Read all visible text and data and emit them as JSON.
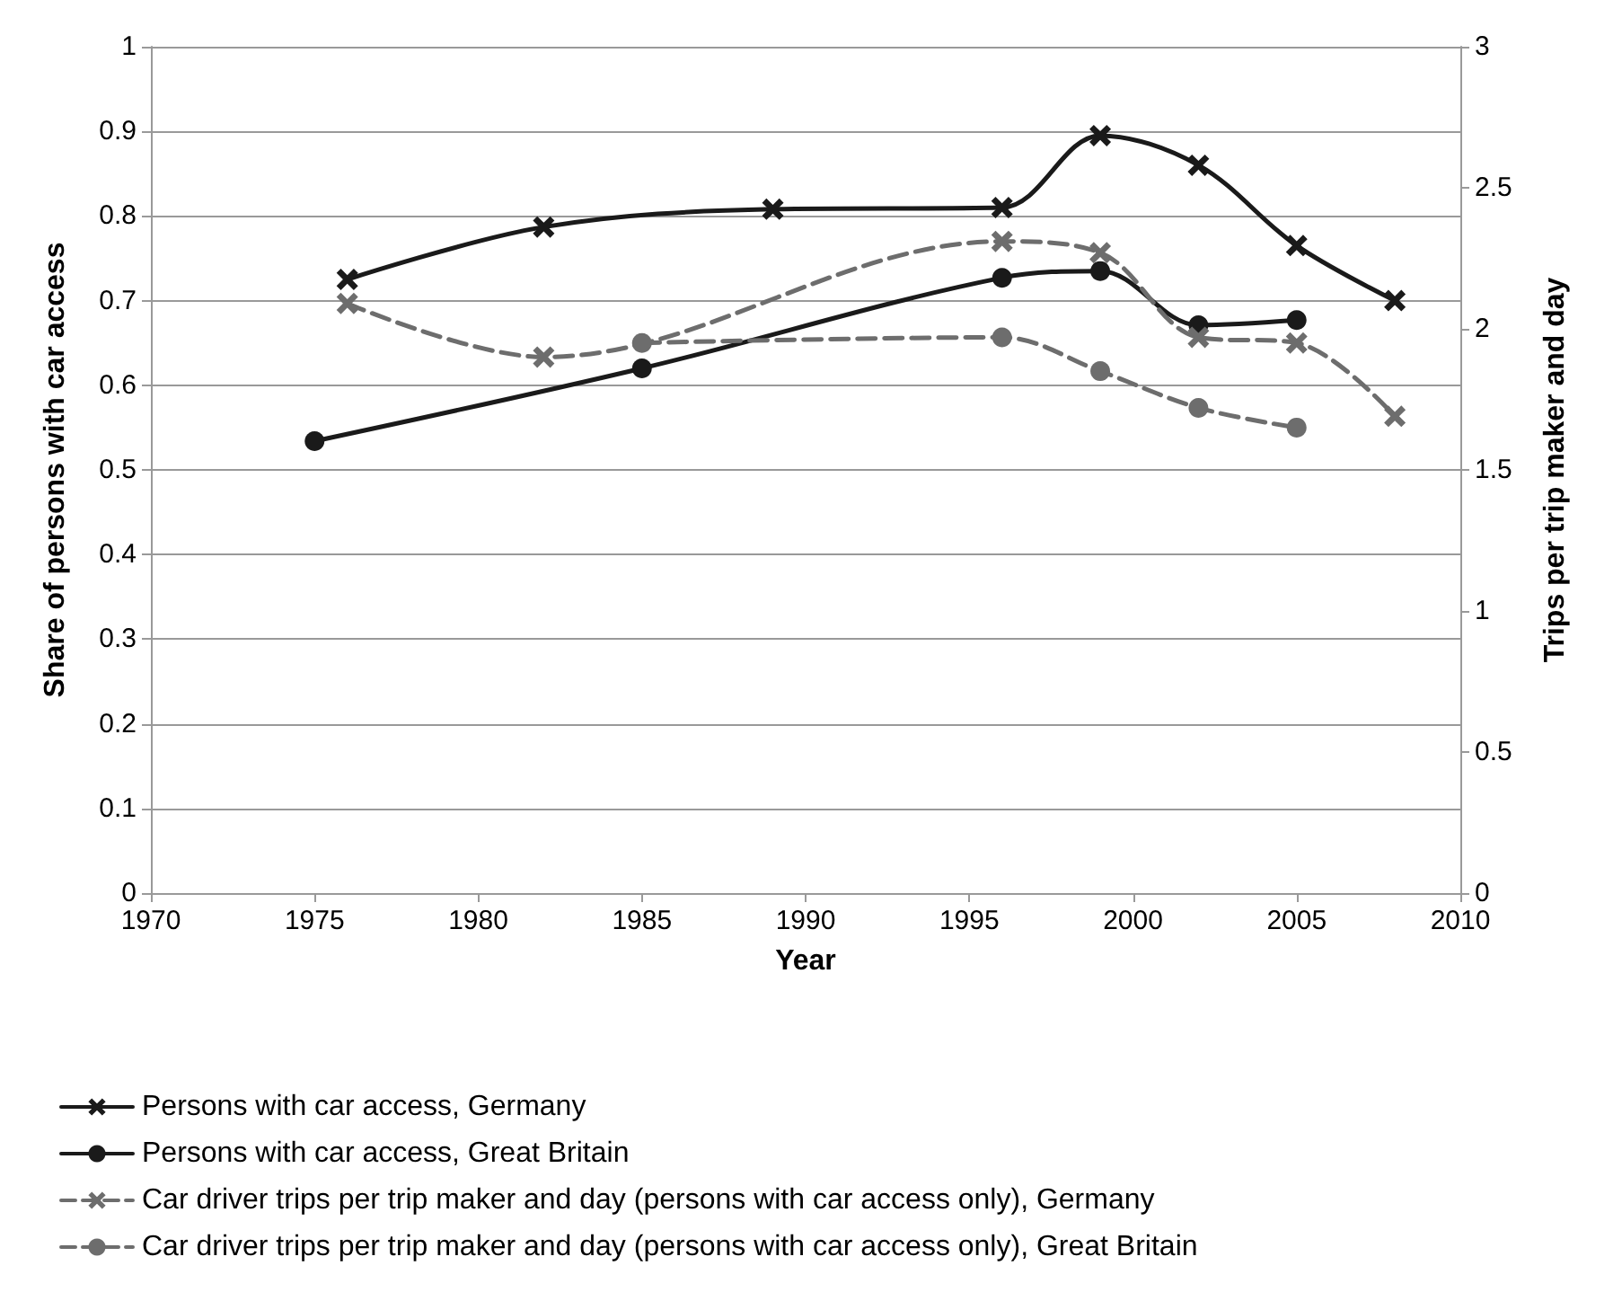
{
  "chart_data": {
    "type": "line",
    "xlabel": "Year",
    "ylabel": "Share of persons with car access",
    "y2label": "Trips per trip maker and day",
    "xlim": [
      1970,
      2010
    ],
    "xticks": [
      1970,
      1975,
      1980,
      1985,
      1990,
      1995,
      2000,
      2005,
      2010
    ],
    "ylim": [
      0,
      1
    ],
    "yticks": [
      0,
      0.1,
      0.2,
      0.3,
      0.4,
      0.5,
      0.6,
      0.7,
      0.8,
      0.9,
      1
    ],
    "y2lim": [
      0,
      3
    ],
    "y2ticks": [
      0,
      0.5,
      1,
      1.5,
      2,
      2.5,
      3
    ],
    "grid": "y",
    "legend": "bottom",
    "series": [
      {
        "name": "Persons with car access, Germany",
        "color": "#1a1a1a",
        "marker": "cross",
        "line_style": "solid",
        "x": [
          1976,
          1982,
          1989,
          1996,
          1999,
          2002,
          2005,
          2008
        ],
        "values": [
          0.725,
          0.787,
          0.808,
          0.81,
          0.895,
          0.86,
          0.765,
          0.7
        ]
      },
      {
        "name": "Persons with car access, Great Britain",
        "color": "#1a1a1a",
        "marker": "circle",
        "line_style": "solid",
        "x": [
          1975,
          1985,
          1996,
          1999,
          2002,
          2005
        ],
        "values": [
          0.534,
          0.62,
          0.727,
          0.735,
          0.671,
          0.677
        ]
      },
      {
        "name": "Car driver trips per trip maker and day (persons with car access only), Germany",
        "color": "#6d6d6d",
        "marker": "cross",
        "line_style": "dashed",
        "axis": "y2",
        "x": [
          1976,
          1982,
          1996,
          1999,
          2002,
          2005,
          2008
        ],
        "values": [
          2.09,
          1.9,
          2.31,
          2.27,
          1.97,
          1.95,
          1.69
        ]
      },
      {
        "name": "Car driver trips per trip maker and day (persons with car access only), Great Britain",
        "color": "#6d6d6d",
        "marker": "circle",
        "line_style": "dashed",
        "axis": "y2",
        "x": [
          1985,
          1996,
          1999,
          2002,
          2005
        ],
        "values": [
          1.95,
          1.97,
          1.85,
          1.72,
          1.65
        ]
      }
    ]
  }
}
